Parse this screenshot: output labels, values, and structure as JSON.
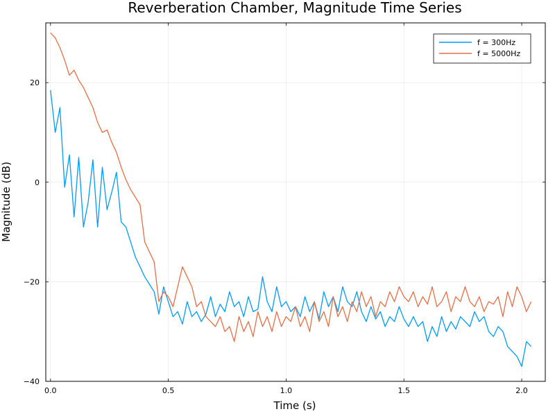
{
  "chart_data": {
    "type": "line",
    "title": "Reverberation Chamber, Magnitude Time Series",
    "xlabel": "Time (s)",
    "ylabel": "Magnitude (dB)",
    "xlim": [
      -0.02,
      2.1
    ],
    "ylim": [
      -40,
      32
    ],
    "x_ticks": [
      0.0,
      0.5,
      1.0,
      1.5,
      2.0
    ],
    "x_tick_labels": [
      "0.0",
      "0.5",
      "1.0",
      "1.5",
      "2.0"
    ],
    "y_ticks": [
      -40,
      -20,
      0,
      20
    ],
    "y_tick_labels": [
      "−40",
      "−20",
      "0",
      "20"
    ],
    "grid": true,
    "legend_position": "top-right",
    "series": [
      {
        "name": "f = 300Hz",
        "color": "#009AFA",
        "x": [
          0.0,
          0.02,
          0.04,
          0.06,
          0.08,
          0.1,
          0.12,
          0.14,
          0.16,
          0.18,
          0.2,
          0.22,
          0.24,
          0.26,
          0.28,
          0.3,
          0.32,
          0.34,
          0.36,
          0.38,
          0.4,
          0.42,
          0.44,
          0.46,
          0.48,
          0.5,
          0.52,
          0.54,
          0.56,
          0.58,
          0.6,
          0.62,
          0.64,
          0.66,
          0.68,
          0.7,
          0.72,
          0.74,
          0.76,
          0.78,
          0.8,
          0.82,
          0.84,
          0.86,
          0.88,
          0.9,
          0.92,
          0.94,
          0.96,
          0.98,
          1.0,
          1.02,
          1.04,
          1.06,
          1.08,
          1.1,
          1.12,
          1.14,
          1.16,
          1.18,
          1.2,
          1.22,
          1.24,
          1.26,
          1.28,
          1.3,
          1.32,
          1.34,
          1.36,
          1.38,
          1.4,
          1.42,
          1.44,
          1.46,
          1.48,
          1.5,
          1.52,
          1.54,
          1.56,
          1.58,
          1.6,
          1.62,
          1.64,
          1.66,
          1.68,
          1.7,
          1.72,
          1.74,
          1.76,
          1.78,
          1.8,
          1.82,
          1.84,
          1.86,
          1.88,
          1.9,
          1.92,
          1.94,
          1.96,
          1.98,
          2.0,
          2.02,
          2.04
        ],
        "y": [
          18.5,
          10.0,
          15.0,
          -1.0,
          5.5,
          -7.0,
          5.0,
          -9.0,
          -4.0,
          4.5,
          -9.0,
          3.0,
          -5.5,
          -2.0,
          2.0,
          -8.0,
          -9.0,
          -12.0,
          -15.0,
          -17.0,
          -19.0,
          -20.5,
          -22.0,
          -26.5,
          -21.0,
          -24.0,
          -27.0,
          -26.0,
          -28.5,
          -24.0,
          -27.0,
          -26.0,
          -28.0,
          -26.5,
          -23.0,
          -27.0,
          -24.5,
          -26.0,
          -22.0,
          -25.0,
          -24.0,
          -27.0,
          -23.0,
          -26.0,
          -25.5,
          -19.0,
          -24.0,
          -26.0,
          -21.0,
          -25.0,
          -24.0,
          -26.0,
          -25.0,
          -27.0,
          -23.0,
          -26.0,
          -24.0,
          -27.5,
          -22.0,
          -25.0,
          -23.0,
          -26.0,
          -21.0,
          -24.0,
          -25.0,
          -22.0,
          -26.0,
          -28.0,
          -25.0,
          -27.5,
          -26.0,
          -29.0,
          -27.0,
          -28.0,
          -25.0,
          -27.5,
          -29.0,
          -27.0,
          -29.0,
          -28.0,
          -32.0,
          -29.0,
          -31.0,
          -27.0,
          -30.0,
          -28.0,
          -29.5,
          -27.0,
          -28.0,
          -29.0,
          -26.0,
          -28.0,
          -27.0,
          -30.0,
          -31.0,
          -29.0,
          -30.0,
          -33.0,
          -34.0,
          -35.0,
          -37.0,
          -32.0,
          -33.0
        ]
      },
      {
        "name": "f = 5000Hz",
        "color": "#E26F46",
        "x": [
          0.0,
          0.02,
          0.04,
          0.06,
          0.08,
          0.1,
          0.12,
          0.14,
          0.16,
          0.18,
          0.2,
          0.22,
          0.24,
          0.26,
          0.28,
          0.3,
          0.32,
          0.34,
          0.36,
          0.38,
          0.4,
          0.42,
          0.44,
          0.46,
          0.48,
          0.5,
          0.52,
          0.54,
          0.56,
          0.58,
          0.6,
          0.62,
          0.64,
          0.66,
          0.68,
          0.7,
          0.72,
          0.74,
          0.76,
          0.78,
          0.8,
          0.82,
          0.84,
          0.86,
          0.88,
          0.9,
          0.92,
          0.94,
          0.96,
          0.98,
          1.0,
          1.02,
          1.04,
          1.06,
          1.08,
          1.1,
          1.12,
          1.14,
          1.16,
          1.18,
          1.2,
          1.22,
          1.24,
          1.26,
          1.28,
          1.3,
          1.32,
          1.34,
          1.36,
          1.38,
          1.4,
          1.42,
          1.44,
          1.46,
          1.48,
          1.5,
          1.52,
          1.54,
          1.56,
          1.58,
          1.6,
          1.62,
          1.64,
          1.66,
          1.68,
          1.7,
          1.72,
          1.74,
          1.76,
          1.78,
          1.8,
          1.82,
          1.84,
          1.86,
          1.88,
          1.9,
          1.92,
          1.94,
          1.96,
          1.98,
          2.0,
          2.02,
          2.04
        ],
        "y": [
          30.0,
          29.0,
          27.0,
          24.5,
          21.5,
          22.5,
          20.5,
          19.0,
          17.0,
          15.0,
          12.0,
          10.0,
          10.5,
          8.0,
          6.0,
          3.0,
          0.5,
          -1.5,
          -3.0,
          -4.5,
          -12.0,
          -14.0,
          -16.0,
          -24.0,
          -22.0,
          -23.0,
          -25.0,
          -21.0,
          -17.0,
          -19.0,
          -21.0,
          -25.0,
          -24.0,
          -27.0,
          -28.0,
          -29.0,
          -27.0,
          -30.0,
          -29.0,
          -32.0,
          -27.0,
          -30.0,
          -28.0,
          -31.0,
          -26.0,
          -29.0,
          -27.0,
          -30.0,
          -26.0,
          -29.0,
          -27.0,
          -28.0,
          -25.0,
          -29.0,
          -27.0,
          -30.0,
          -24.0,
          -28.0,
          -26.0,
          -29.0,
          -23.0,
          -27.0,
          -25.0,
          -28.0,
          -24.0,
          -26.0,
          -22.0,
          -25.0,
          -23.0,
          -27.0,
          -24.0,
          -25.0,
          -22.0,
          -24.0,
          -21.0,
          -23.0,
          -24.0,
          -22.0,
          -25.0,
          -23.0,
          -24.5,
          -21.0,
          -25.0,
          -24.0,
          -22.0,
          -26.0,
          -23.0,
          -24.0,
          -21.0,
          -24.0,
          -25.0,
          -23.0,
          -26.0,
          -24.0,
          -24.5,
          -23.0,
          -27.0,
          -22.0,
          -25.0,
          -21.0,
          -23.0,
          -26.0,
          -24.0
        ]
      }
    ]
  }
}
